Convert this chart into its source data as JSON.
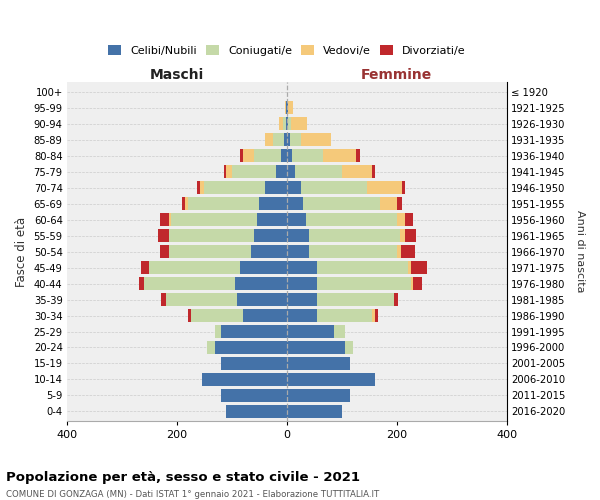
{
  "age_groups": [
    "0-4",
    "5-9",
    "10-14",
    "15-19",
    "20-24",
    "25-29",
    "30-34",
    "35-39",
    "40-44",
    "45-49",
    "50-54",
    "55-59",
    "60-64",
    "65-69",
    "70-74",
    "75-79",
    "80-84",
    "85-89",
    "90-94",
    "95-99",
    "100+"
  ],
  "birth_years": [
    "2016-2020",
    "2011-2015",
    "2006-2010",
    "2001-2005",
    "1996-2000",
    "1991-1995",
    "1986-1990",
    "1981-1985",
    "1976-1980",
    "1971-1975",
    "1966-1970",
    "1961-1965",
    "1956-1960",
    "1951-1955",
    "1946-1950",
    "1941-1945",
    "1936-1940",
    "1931-1935",
    "1926-1930",
    "1921-1925",
    "≤ 1920"
  ],
  "colors": {
    "celibi": "#4472a8",
    "coniugati": "#c5d9a8",
    "vedovi": "#f5c97a",
    "divorziati": "#c0282c"
  },
  "maschi": {
    "celibi": [
      110,
      120,
      155,
      120,
      130,
      120,
      80,
      90,
      95,
      85,
      65,
      60,
      55,
      50,
      40,
      20,
      10,
      5,
      2,
      1,
      0
    ],
    "coniugati": [
      0,
      0,
      0,
      0,
      15,
      10,
      95,
      130,
      165,
      165,
      150,
      155,
      155,
      130,
      110,
      80,
      50,
      20,
      5,
      0,
      0
    ],
    "vedovi": [
      0,
      0,
      0,
      0,
      0,
      0,
      0,
      0,
      0,
      0,
      0,
      0,
      5,
      5,
      8,
      10,
      20,
      15,
      8,
      3,
      0
    ],
    "divorziati": [
      0,
      0,
      0,
      0,
      0,
      0,
      5,
      8,
      8,
      15,
      15,
      20,
      15,
      5,
      5,
      5,
      5,
      0,
      0,
      0,
      0
    ]
  },
  "femmine": {
    "celibi": [
      100,
      115,
      160,
      115,
      105,
      85,
      55,
      55,
      55,
      55,
      40,
      40,
      35,
      30,
      25,
      15,
      10,
      5,
      2,
      2,
      0
    ],
    "coniugati": [
      0,
      0,
      0,
      0,
      15,
      20,
      100,
      140,
      170,
      165,
      160,
      165,
      165,
      140,
      120,
      85,
      55,
      20,
      5,
      0,
      0
    ],
    "vedovi": [
      0,
      0,
      0,
      0,
      0,
      0,
      5,
      0,
      5,
      5,
      8,
      10,
      15,
      30,
      65,
      55,
      60,
      55,
      30,
      10,
      0
    ],
    "divorziati": [
      0,
      0,
      0,
      0,
      0,
      0,
      5,
      8,
      15,
      30,
      25,
      20,
      15,
      10,
      5,
      5,
      8,
      0,
      0,
      0,
      0
    ]
  },
  "title": "Popolazione per età, sesso e stato civile - 2021",
  "subtitle": "COMUNE DI GONZAGA (MN) - Dati ISTAT 1° gennaio 2021 - Elaborazione TUTTITALIA.IT",
  "maschi_label": "Maschi",
  "femmine_label": "Femmine",
  "ylabel_left": "Fasce di età",
  "ylabel_right": "Anni di nascita",
  "xlim": 400,
  "legend_labels": [
    "Celibi/Nubili",
    "Coniugati/e",
    "Vedovi/e",
    "Divorziati/e"
  ],
  "bg_color": "#efefef",
  "bar_height": 0.82
}
